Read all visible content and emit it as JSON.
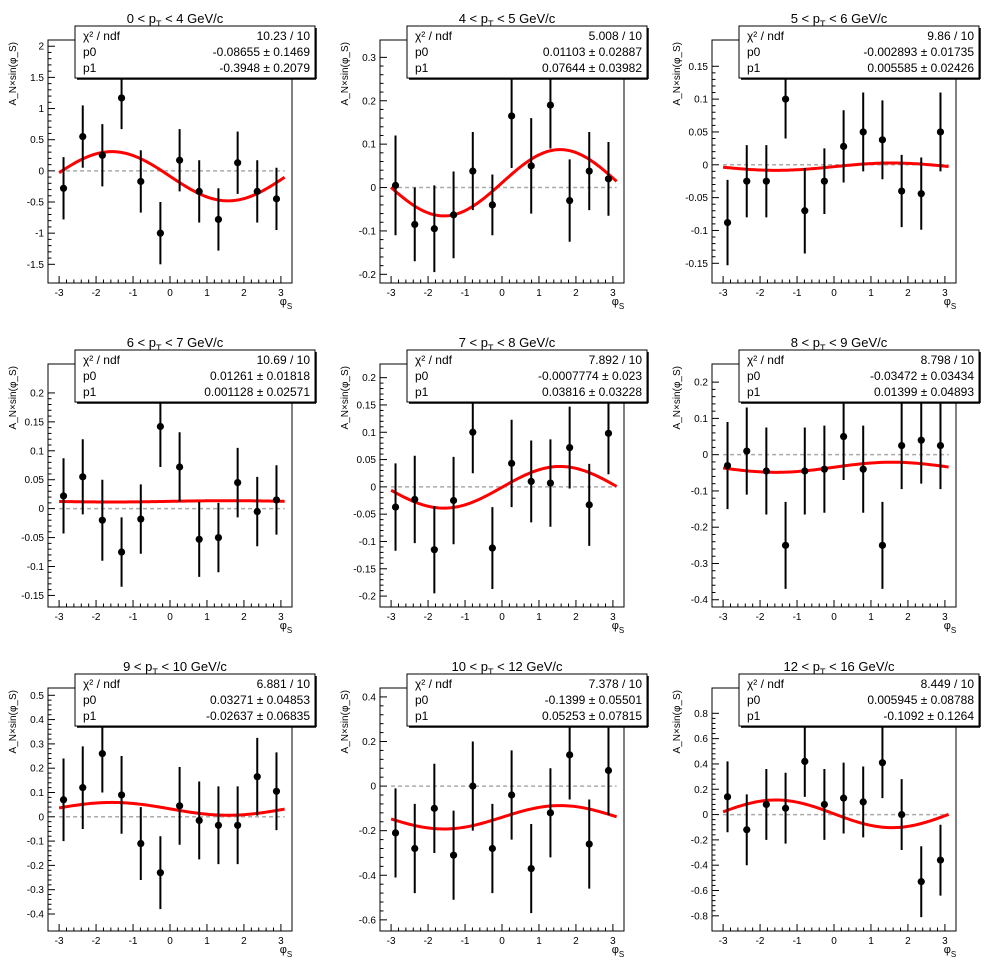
{
  "chart_data": [
    {
      "type": "scatter",
      "title": "0 < p_T < 4 GeV/c",
      "title_parts": [
        "0 < p",
        "T",
        " < 4 GeV/c"
      ],
      "xlabel": "φ_S",
      "xlabel_main": "φ",
      "xlabel_sub": "S",
      "ylabel": "A_N×sin(φ_S)",
      "xlim": [
        -3.3,
        3.3
      ],
      "xticks": [
        -3,
        -2,
        -1,
        0,
        1,
        2,
        3
      ],
      "ylim": [
        -1.8,
        2.1
      ],
      "yticks": [
        -1.5,
        -1,
        -0.5,
        0,
        0.5,
        1,
        1.5,
        2
      ],
      "x": [
        -2.88,
        -2.36,
        -1.83,
        -1.31,
        -0.79,
        -0.26,
        0.26,
        0.79,
        1.31,
        1.83,
        2.36,
        2.88
      ],
      "y": [
        -0.28,
        0.55,
        0.25,
        1.17,
        -0.17,
        -1.0,
        0.17,
        -0.33,
        -0.78,
        0.13,
        -0.33,
        -0.45
      ],
      "yerr": [
        0.5,
        0.5,
        0.5,
        0.5,
        0.5,
        0.5,
        0.5,
        0.5,
        0.5,
        0.5,
        0.5,
        0.5
      ],
      "fit": {
        "p0": -0.08655,
        "p1": -0.3948
      },
      "stats": [
        {
          "label": "χ² / ndf",
          "value": "10.23 / 10"
        },
        {
          "label": "p0",
          "value": "-0.08655 ± 0.1469"
        },
        {
          "label": "p1",
          "value": "-0.3948 ± 0.2079"
        }
      ]
    },
    {
      "type": "scatter",
      "title": "4 < p_T < 5 GeV/c",
      "title_parts": [
        "4 < p",
        "T",
        " < 5 GeV/c"
      ],
      "xlabel": "φ_S",
      "xlabel_main": "φ",
      "xlabel_sub": "S",
      "ylabel": "A_N×sin(φ_S)",
      "xlim": [
        -3.3,
        3.3
      ],
      "xticks": [
        -3,
        -2,
        -1,
        0,
        1,
        2,
        3
      ],
      "ylim": [
        -0.22,
        0.34
      ],
      "yticks": [
        -0.2,
        -0.1,
        0,
        0.1,
        0.2,
        0.3
      ],
      "x": [
        -2.88,
        -2.36,
        -1.83,
        -1.31,
        -0.79,
        -0.26,
        0.26,
        0.79,
        1.31,
        1.83,
        2.36,
        2.88
      ],
      "y": [
        0.005,
        -0.085,
        -0.095,
        -0.063,
        0.038,
        -0.04,
        0.165,
        0.05,
        0.19,
        -0.03,
        0.038,
        0.02
      ],
      "yerr": [
        0.115,
        0.085,
        0.1,
        0.1,
        0.09,
        0.07,
        0.12,
        0.11,
        0.1,
        0.095,
        0.09,
        0.085
      ],
      "fit": {
        "p0": 0.01103,
        "p1": 0.07644
      },
      "stats": [
        {
          "label": "χ² / ndf",
          "value": "5.008 / 10"
        },
        {
          "label": "p0",
          "value": "0.01103 ± 0.02887"
        },
        {
          "label": "p1",
          "value": "0.07644 ± 0.03982"
        }
      ]
    },
    {
      "type": "scatter",
      "title": "5 < p_T < 6 GeV/c",
      "title_parts": [
        "5 < p",
        "T",
        " < 6 GeV/c"
      ],
      "xlabel": "φ_S",
      "xlabel_main": "φ",
      "xlabel_sub": "S",
      "ylabel": "A_N×sin(φ_S)",
      "xlim": [
        -3.3,
        3.3
      ],
      "xticks": [
        -3,
        -2,
        -1,
        0,
        1,
        2,
        3
      ],
      "ylim": [
        -0.18,
        0.19
      ],
      "yticks": [
        -0.15,
        -0.1,
        -0.05,
        0,
        0.05,
        0.1,
        0.15
      ],
      "x": [
        -2.88,
        -2.36,
        -1.83,
        -1.31,
        -0.79,
        -0.26,
        0.26,
        0.79,
        1.31,
        1.83,
        2.36,
        2.88
      ],
      "y": [
        -0.088,
        -0.025,
        -0.025,
        0.1,
        -0.07,
        -0.025,
        0.028,
        0.05,
        0.038,
        -0.04,
        -0.044,
        0.05
      ],
      "yerr": [
        0.065,
        0.055,
        0.055,
        0.06,
        0.065,
        0.05,
        0.055,
        0.06,
        0.06,
        0.055,
        0.055,
        0.06
      ],
      "fit": {
        "p0": -0.002893,
        "p1": 0.005585
      },
      "stats": [
        {
          "label": "χ² / ndf",
          "value": "9.86 / 10"
        },
        {
          "label": "p0",
          "value": "-0.002893 ± 0.01735"
        },
        {
          "label": "p1",
          "value": "0.005585 ± 0.02426"
        }
      ]
    },
    {
      "type": "scatter",
      "title": "6 < p_T < 7 GeV/c",
      "title_parts": [
        "6 < p",
        "T",
        " < 7 GeV/c"
      ],
      "xlabel": "φ_S",
      "xlabel_main": "φ",
      "xlabel_sub": "S",
      "ylabel": "A_N×sin(φ_S)",
      "xlim": [
        -3.3,
        3.3
      ],
      "xticks": [
        -3,
        -2,
        -1,
        0,
        1,
        2,
        3
      ],
      "ylim": [
        -0.17,
        0.25
      ],
      "yticks": [
        -0.15,
        -0.1,
        -0.05,
        0,
        0.05,
        0.1,
        0.15,
        0.2
      ],
      "x": [
        -2.88,
        -2.36,
        -1.83,
        -1.31,
        -0.79,
        -0.26,
        0.26,
        0.79,
        1.31,
        1.83,
        2.36,
        2.88
      ],
      "y": [
        0.022,
        0.055,
        -0.02,
        -0.075,
        -0.018,
        0.142,
        0.072,
        -0.053,
        -0.05,
        0.045,
        -0.005,
        0.015
      ],
      "yerr": [
        0.065,
        0.065,
        0.07,
        0.06,
        0.06,
        0.07,
        0.06,
        0.065,
        0.06,
        0.06,
        0.06,
        0.06
      ],
      "fit": {
        "p0": 0.01261,
        "p1": 0.001128
      },
      "stats": [
        {
          "label": "χ² / ndf",
          "value": "10.69 / 10"
        },
        {
          "label": "p0",
          "value": "0.01261 ± 0.01818"
        },
        {
          "label": "p1",
          "value": "0.001128 ± 0.02571"
        }
      ]
    },
    {
      "type": "scatter",
      "title": "7 < p_T < 8 GeV/c",
      "title_parts": [
        "7 < p",
        "T",
        " < 8 GeV/c"
      ],
      "xlabel": "φ_S",
      "xlabel_main": "φ",
      "xlabel_sub": "S",
      "ylabel": "A_N×sin(φ_S)",
      "xlim": [
        -3.3,
        3.3
      ],
      "xticks": [
        -3,
        -2,
        -1,
        0,
        1,
        2,
        3
      ],
      "ylim": [
        -0.22,
        0.225
      ],
      "yticks": [
        -0.2,
        -0.15,
        -0.1,
        -0.05,
        0,
        0.05,
        0.1,
        0.15,
        0.2
      ],
      "x": [
        -2.88,
        -2.36,
        -1.83,
        -1.31,
        -0.79,
        -0.26,
        0.26,
        0.79,
        1.31,
        1.83,
        2.36,
        2.88
      ],
      "y": [
        -0.037,
        -0.023,
        -0.115,
        -0.025,
        0.1,
        -0.112,
        0.043,
        0.01,
        0.007,
        0.072,
        -0.033,
        0.098
      ],
      "yerr": [
        0.08,
        0.08,
        0.08,
        0.08,
        0.075,
        0.075,
        0.08,
        0.075,
        0.08,
        0.075,
        0.075,
        0.075
      ],
      "fit": {
        "p0": -0.0007774,
        "p1": 0.03816
      },
      "stats": [
        {
          "label": "χ² / ndf",
          "value": "7.892 / 10"
        },
        {
          "label": "p0",
          "value": "-0.0007774 ± 0.023"
        },
        {
          "label": "p1",
          "value": "0.03816 ± 0.03228"
        }
      ]
    },
    {
      "type": "scatter",
      "title": "8 < p_T < 9 GeV/c",
      "title_parts": [
        "8 < p",
        "T",
        " < 9 GeV/c"
      ],
      "xlabel": "φ_S",
      "xlabel_main": "φ",
      "xlabel_sub": "S",
      "ylabel": "A_N×sin(φ_S)",
      "xlim": [
        -3.3,
        3.3
      ],
      "xticks": [
        -3,
        -2,
        -1,
        0,
        1,
        2,
        3
      ],
      "ylim": [
        -0.42,
        0.25
      ],
      "yticks": [
        -0.4,
        -0.3,
        -0.2,
        -0.1,
        0,
        0.1,
        0.2
      ],
      "x": [
        -2.88,
        -2.36,
        -1.83,
        -1.31,
        -0.79,
        -0.26,
        0.26,
        0.79,
        1.31,
        1.83,
        2.36,
        2.88
      ],
      "y": [
        -0.03,
        0.01,
        -0.045,
        -0.25,
        -0.045,
        -0.04,
        0.05,
        -0.04,
        -0.25,
        0.025,
        0.04,
        0.025
      ],
      "yerr": [
        0.12,
        0.12,
        0.12,
        0.12,
        0.12,
        0.12,
        0.12,
        0.12,
        0.12,
        0.12,
        0.12,
        0.12
      ],
      "fit": {
        "p0": -0.03472,
        "p1": 0.01399
      },
      "stats": [
        {
          "label": "χ² / ndf",
          "value": "8.798 / 10"
        },
        {
          "label": "p0",
          "value": "-0.03472 ± 0.03434"
        },
        {
          "label": "p1",
          "value": "0.01399 ± 0.04893"
        }
      ]
    },
    {
      "type": "scatter",
      "title": "9 < p_T < 10 GeV/c",
      "title_parts": [
        "9 < p",
        "T",
        " < 10 GeV/c"
      ],
      "xlabel": "φ_S",
      "xlabel_main": "φ",
      "xlabel_sub": "S",
      "ylabel": "A_N×sin(φ_S)",
      "xlim": [
        -3.3,
        3.3
      ],
      "xticks": [
        -3,
        -2,
        -1,
        0,
        1,
        2,
        3
      ],
      "ylim": [
        -0.47,
        0.53
      ],
      "yticks": [
        -0.4,
        -0.3,
        -0.2,
        -0.1,
        0,
        0.1,
        0.2,
        0.3,
        0.4,
        0.5
      ],
      "x": [
        -2.88,
        -2.36,
        -1.83,
        -1.31,
        -0.79,
        -0.26,
        0.26,
        0.79,
        1.31,
        1.83,
        2.36,
        2.88
      ],
      "y": [
        0.07,
        0.12,
        0.26,
        0.09,
        -0.11,
        -0.23,
        0.045,
        -0.015,
        -0.035,
        -0.035,
        0.165,
        0.105
      ],
      "yerr": [
        0.17,
        0.17,
        0.16,
        0.16,
        0.15,
        0.15,
        0.16,
        0.16,
        0.16,
        0.16,
        0.16,
        0.16
      ],
      "fit": {
        "p0": 0.03271,
        "p1": -0.02637
      },
      "stats": [
        {
          "label": "χ² / ndf",
          "value": "6.881 / 10"
        },
        {
          "label": "p0",
          "value": "0.03271 ± 0.04853"
        },
        {
          "label": "p1",
          "value": "-0.02637 ± 0.06835"
        }
      ]
    },
    {
      "type": "scatter",
      "title": "10 < p_T < 12 GeV/c",
      "title_parts": [
        "10 < p",
        "T",
        " < 12 GeV/c"
      ],
      "xlabel": "φ_S",
      "xlabel_main": "φ",
      "xlabel_sub": "S",
      "ylabel": "A_N×sin(φ_S)",
      "xlim": [
        -3.3,
        3.3
      ],
      "xticks": [
        -3,
        -2,
        -1,
        0,
        1,
        2,
        3
      ],
      "ylim": [
        -0.65,
        0.44
      ],
      "yticks": [
        -0.6,
        -0.4,
        -0.2,
        0,
        0.2,
        0.4
      ],
      "x": [
        -2.88,
        -2.36,
        -1.83,
        -1.31,
        -0.79,
        -0.26,
        0.26,
        0.79,
        1.31,
        1.83,
        2.36,
        2.88
      ],
      "y": [
        -0.21,
        -0.28,
        -0.1,
        -0.31,
        0.0,
        -0.28,
        -0.04,
        -0.37,
        -0.12,
        0.14,
        -0.26,
        0.07
      ],
      "yerr": [
        0.2,
        0.2,
        0.2,
        0.2,
        0.2,
        0.2,
        0.2,
        0.2,
        0.2,
        0.2,
        0.2,
        0.2
      ],
      "fit": {
        "p0": -0.1399,
        "p1": 0.05253
      },
      "stats": [
        {
          "label": "χ² / ndf",
          "value": "7.378 / 10"
        },
        {
          "label": "p0",
          "value": "-0.1399 ± 0.05501"
        },
        {
          "label": "p1",
          "value": "0.05253 ± 0.07815"
        }
      ]
    },
    {
      "type": "scatter",
      "title": "12 < p_T < 16 GeV/c",
      "title_parts": [
        "12 < p",
        "T",
        " < 16 GeV/c"
      ],
      "xlabel": "φ_S",
      "xlabel_main": "φ",
      "xlabel_sub": "S",
      "ylabel": "A_N×sin(φ_S)",
      "xlim": [
        -3.3,
        3.3
      ],
      "xticks": [
        -3,
        -2,
        -1,
        0,
        1,
        2,
        3
      ],
      "ylim": [
        -0.92,
        1.0
      ],
      "yticks": [
        -0.8,
        -0.6,
        -0.4,
        -0.2,
        0,
        0.2,
        0.4,
        0.6,
        0.8
      ],
      "x": [
        -2.88,
        -2.36,
        -1.83,
        -1.31,
        -0.79,
        -0.26,
        0.26,
        0.79,
        1.31,
        1.83,
        2.36,
        2.88
      ],
      "y": [
        0.14,
        -0.12,
        0.08,
        0.05,
        0.42,
        0.08,
        0.13,
        0.1,
        0.41,
        0.0,
        -0.53,
        -0.36
      ],
      "yerr": [
        0.28,
        0.28,
        0.28,
        0.28,
        0.28,
        0.28,
        0.28,
        0.28,
        0.28,
        0.28,
        0.28,
        0.28
      ],
      "fit": {
        "p0": 0.005945,
        "p1": -0.1092
      },
      "stats": [
        {
          "label": "χ² / ndf",
          "value": "8.449 / 10"
        },
        {
          "label": "p0",
          "value": "0.005945 ± 0.08788"
        },
        {
          "label": "p1",
          "value": "-0.1092 ± 0.1264"
        }
      ]
    }
  ]
}
